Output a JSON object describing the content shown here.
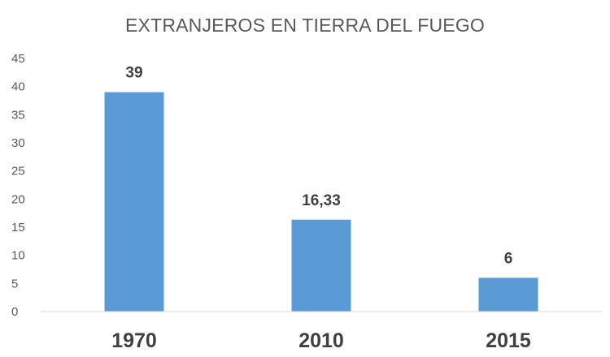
{
  "chart_data": {
    "type": "bar",
    "title": "EXTRANJEROS EN TIERRA DEL FUEGO",
    "xlabel": "",
    "ylabel": "",
    "categories": [
      "1970",
      "2010",
      "2015"
    ],
    "values": [
      39,
      16.33,
      6
    ],
    "data_labels": [
      "39",
      "16,33",
      "6"
    ],
    "yticks": [
      "0",
      "5",
      "10",
      "15",
      "20",
      "25",
      "30",
      "35",
      "40",
      "45"
    ],
    "ylim": [
      0,
      45
    ],
    "grid": false,
    "legend": "none",
    "bar_color": "#5b9bd5"
  }
}
